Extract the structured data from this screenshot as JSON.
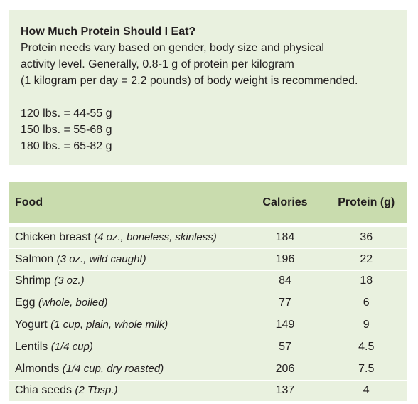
{
  "infobox": {
    "title": "How Much Protein Should I Eat?",
    "paragraph_lines": [
      "Protein needs vary based on gender, body size and physical",
      "activity level. Generally, 0.8-1 g of protein per kilogram",
      "(1 kilogram per day = 2.2 pounds) of body weight is recommended."
    ],
    "ranges": [
      "120 lbs. = 44-55 g",
      "150 lbs. = 55-68 g",
      "180 lbs. = 65-82 g"
    ]
  },
  "table": {
    "headers": {
      "food": "Food",
      "calories": "Calories",
      "protein": "Protein (g)"
    },
    "rows": [
      {
        "name": "Chicken breast",
        "note": "(4 oz., boneless, skinless)",
        "calories": "184",
        "protein": "36"
      },
      {
        "name": "Salmon",
        "note": "(3 oz., wild caught)",
        "calories": "196",
        "protein": "22"
      },
      {
        "name": "Shrimp",
        "note": "(3 oz.)",
        "calories": "84",
        "protein": "18"
      },
      {
        "name": "Egg",
        "note": "(whole, boiled)",
        "calories": "77",
        "protein": "6"
      },
      {
        "name": "Yogurt",
        "note": "(1 cup, plain, whole milk)",
        "calories": "149",
        "protein": "9"
      },
      {
        "name": "Lentils",
        "note": "(1/4 cup)",
        "calories": "57",
        "protein": "4.5"
      },
      {
        "name": "Almonds",
        "note": "(1/4 cup, dry roasted)",
        "calories": "206",
        "protein": "7.5"
      },
      {
        "name": "Chia seeds",
        "note": "(2 Tbsp.)",
        "calories": "137",
        "protein": "4"
      }
    ]
  }
}
